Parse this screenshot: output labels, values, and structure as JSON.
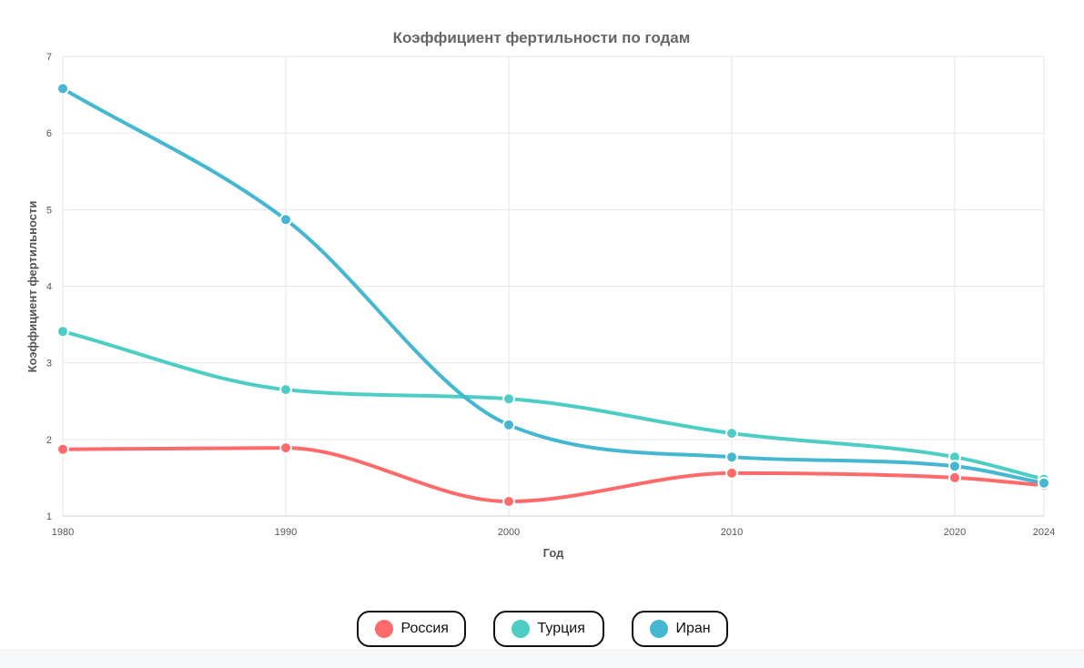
{
  "chart_data": {
    "type": "line",
    "title": "Коэффициент фертильности по годам",
    "xlabel": "Год",
    "ylabel": "Коэффициент фертильности",
    "x": [
      1980,
      1990,
      2000,
      2010,
      2020,
      2024
    ],
    "xlim": [
      1980,
      2024
    ],
    "ylim": [
      1,
      7
    ],
    "yticks": [
      1,
      2,
      3,
      4,
      5,
      6,
      7
    ],
    "grid": true,
    "legend_position": "bottom",
    "series": [
      {
        "name": "Россия",
        "color": "#ff6b6b",
        "values": [
          1.87,
          1.89,
          1.19,
          1.56,
          1.5,
          1.4
        ]
      },
      {
        "name": "Турция",
        "color": "#4ecdc4",
        "values": [
          3.41,
          2.65,
          2.53,
          2.08,
          1.77,
          1.48
        ]
      },
      {
        "name": "Иран",
        "color": "#45b7d1",
        "values": [
          6.58,
          4.87,
          2.19,
          1.77,
          1.65,
          1.43
        ]
      }
    ]
  }
}
